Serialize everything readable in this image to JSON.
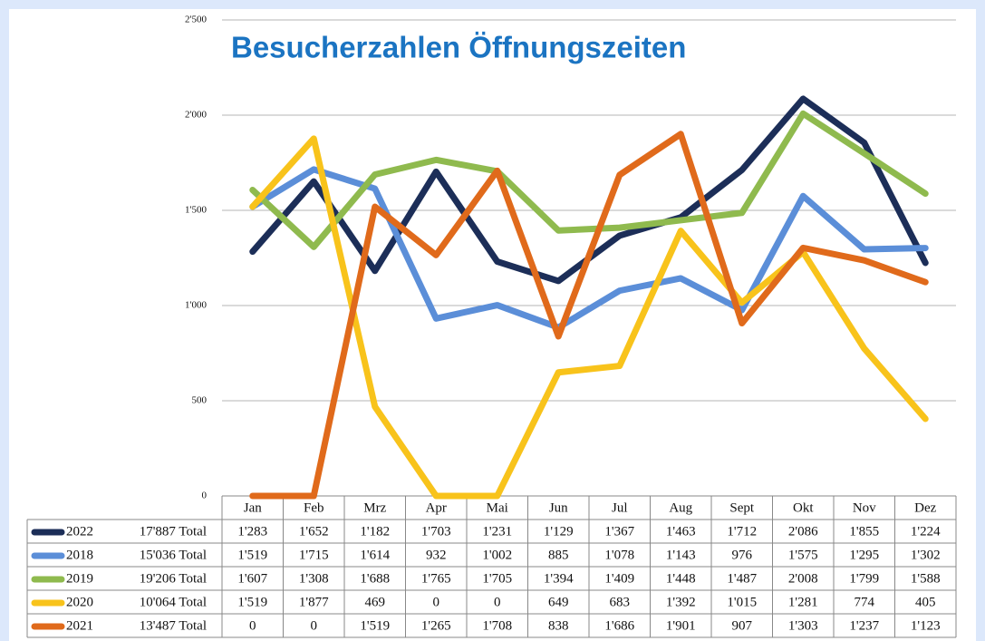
{
  "chart_data": {
    "type": "line",
    "title": "Besucherzahlen Öffnungszeiten",
    "categories": [
      "Jan",
      "Feb",
      "Mrz",
      "Apr",
      "Mai",
      "Jun",
      "Jul",
      "Aug",
      "Sept",
      "Okt",
      "Nov",
      "Dez"
    ],
    "ylim": [
      0,
      2500
    ],
    "yticks": [
      {
        "value": 0,
        "label": "0"
      },
      {
        "value": 500,
        "label": "500"
      },
      {
        "value": 1000,
        "label": "1'000"
      },
      {
        "value": 1500,
        "label": "1'500"
      },
      {
        "value": 2000,
        "label": "2'000"
      },
      {
        "value": 2500,
        "label": "2'500"
      }
    ],
    "grid": true,
    "series": [
      {
        "name": "2022",
        "total": "17'887 Total",
        "color": "#1c2e58",
        "values": [
          1283,
          1652,
          1182,
          1703,
          1231,
          1129,
          1367,
          1463,
          1712,
          2086,
          1855,
          1224
        ],
        "value_labels": [
          "1'283",
          "1'652",
          "1'182",
          "1'703",
          "1'231",
          "1'129",
          "1'367",
          "1'463",
          "1'712",
          "2'086",
          "1'855",
          "1'224"
        ]
      },
      {
        "name": "2018",
        "total": "15'036 Total",
        "color": "#5b8ed8",
        "values": [
          1519,
          1715,
          1614,
          932,
          1002,
          885,
          1078,
          1143,
          976,
          1575,
          1295,
          1302
        ],
        "value_labels": [
          "1'519",
          "1'715",
          "1'614",
          "932",
          "1'002",
          "885",
          "1'078",
          "1'143",
          "976",
          "1'575",
          "1'295",
          "1'302"
        ]
      },
      {
        "name": "2019",
        "total": "19'206 Total",
        "color": "#8fba4e",
        "values": [
          1607,
          1308,
          1688,
          1765,
          1705,
          1394,
          1409,
          1448,
          1487,
          2008,
          1799,
          1588
        ],
        "value_labels": [
          "1'607",
          "1'308",
          "1'688",
          "1'765",
          "1'705",
          "1'394",
          "1'409",
          "1'448",
          "1'487",
          "2'008",
          "1'799",
          "1'588"
        ]
      },
      {
        "name": "2020",
        "total": "10'064 Total",
        "color": "#f8c31b",
        "values": [
          1519,
          1877,
          469,
          0,
          0,
          649,
          683,
          1392,
          1015,
          1281,
          774,
          405
        ],
        "value_labels": [
          "1'519",
          "1'877",
          "469",
          "0",
          "0",
          "649",
          "683",
          "1'392",
          "1'015",
          "1'281",
          "774",
          "405"
        ]
      },
      {
        "name": "2021",
        "total": "13'487 Total",
        "color": "#e06a1b",
        "values": [
          0,
          0,
          1519,
          1265,
          1708,
          838,
          1686,
          1901,
          907,
          1303,
          1237,
          1123
        ],
        "value_labels": [
          "0",
          "0",
          "1'519",
          "1'265",
          "1'708",
          "838",
          "1'686",
          "1'901",
          "907",
          "1'303",
          "1'237",
          "1'123"
        ]
      }
    ]
  }
}
